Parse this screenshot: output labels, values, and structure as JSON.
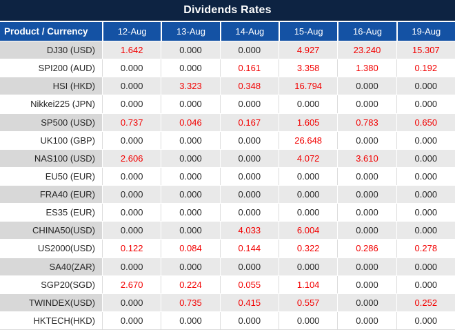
{
  "title": "Dividends Rates",
  "colors": {
    "navy": "#0d2342",
    "hblue": "#1452a4",
    "red": "#f20000",
    "ink": "#262626",
    "gray-col": "#d8d8d8",
    "gray-val": "#e9e9e9"
  },
  "chart_data": {
    "type": "table",
    "title": "Dividends Rates",
    "columns": [
      "Product / Currency",
      "12-Aug",
      "13-Aug",
      "14-Aug",
      "15-Aug",
      "16-Aug",
      "19-Aug"
    ],
    "highlight_color_meaning": "red values indicate non-zero dividend rates",
    "rows": [
      {
        "product": "DJ30 (USD)",
        "values": [
          "1.642",
          "0.000",
          "0.000",
          "4.927",
          "23.240",
          "15.307"
        ],
        "red": [
          true,
          false,
          false,
          true,
          true,
          true
        ]
      },
      {
        "product": "SPI200 (AUD)",
        "values": [
          "0.000",
          "0.000",
          "0.161",
          "3.358",
          "1.380",
          "0.192"
        ],
        "red": [
          false,
          false,
          true,
          true,
          true,
          true
        ]
      },
      {
        "product": "HSI (HKD)",
        "values": [
          "0.000",
          "3.323",
          "0.348",
          "16.794",
          "0.000",
          "0.000"
        ],
        "red": [
          false,
          true,
          true,
          true,
          false,
          false
        ]
      },
      {
        "product": "Nikkei225 (JPN)",
        "values": [
          "0.000",
          "0.000",
          "0.000",
          "0.000",
          "0.000",
          "0.000"
        ],
        "red": [
          false,
          false,
          false,
          false,
          false,
          false
        ]
      },
      {
        "product": "SP500 (USD)",
        "values": [
          "0.737",
          "0.046",
          "0.167",
          "1.605",
          "0.783",
          "0.650"
        ],
        "red": [
          true,
          true,
          true,
          true,
          true,
          true
        ]
      },
      {
        "product": "UK100 (GBP)",
        "values": [
          "0.000",
          "0.000",
          "0.000",
          "26.648",
          "0.000",
          "0.000"
        ],
        "red": [
          false,
          false,
          false,
          true,
          false,
          false
        ]
      },
      {
        "product": "NAS100 (USD)",
        "values": [
          "2.606",
          "0.000",
          "0.000",
          "4.072",
          "3.610",
          "0.000"
        ],
        "red": [
          true,
          false,
          false,
          true,
          true,
          false
        ]
      },
      {
        "product": "EU50 (EUR)",
        "values": [
          "0.000",
          "0.000",
          "0.000",
          "0.000",
          "0.000",
          "0.000"
        ],
        "red": [
          false,
          false,
          false,
          false,
          false,
          false
        ]
      },
      {
        "product": "FRA40 (EUR)",
        "values": [
          "0.000",
          "0.000",
          "0.000",
          "0.000",
          "0.000",
          "0.000"
        ],
        "red": [
          false,
          false,
          false,
          false,
          false,
          false
        ]
      },
      {
        "product": "ES35 (EUR)",
        "values": [
          "0.000",
          "0.000",
          "0.000",
          "0.000",
          "0.000",
          "0.000"
        ],
        "red": [
          false,
          false,
          false,
          false,
          false,
          false
        ]
      },
      {
        "product": "CHINA50(USD)",
        "values": [
          "0.000",
          "0.000",
          "4.033",
          "6.004",
          "0.000",
          "0.000"
        ],
        "red": [
          false,
          false,
          true,
          true,
          false,
          false
        ]
      },
      {
        "product": "US2000(USD)",
        "values": [
          "0.122",
          "0.084",
          "0.144",
          "0.322",
          "0.286",
          "0.278"
        ],
        "red": [
          true,
          true,
          true,
          true,
          true,
          true
        ]
      },
      {
        "product": "SA40(ZAR)",
        "values": [
          "0.000",
          "0.000",
          "0.000",
          "0.000",
          "0.000",
          "0.000"
        ],
        "red": [
          false,
          false,
          false,
          false,
          false,
          false
        ]
      },
      {
        "product": "SGP20(SGD)",
        "values": [
          "2.670",
          "0.224",
          "0.055",
          "1.104",
          "0.000",
          "0.000"
        ],
        "red": [
          true,
          true,
          true,
          true,
          false,
          false
        ]
      },
      {
        "product": "TWINDEX(USD)",
        "values": [
          "0.000",
          "0.735",
          "0.415",
          "0.557",
          "0.000",
          "0.252"
        ],
        "red": [
          false,
          true,
          true,
          true,
          false,
          true
        ]
      },
      {
        "product": "HKTECH(HKD)",
        "values": [
          "0.000",
          "0.000",
          "0.000",
          "0.000",
          "0.000",
          "0.000"
        ],
        "red": [
          false,
          false,
          false,
          false,
          false,
          false
        ]
      }
    ]
  }
}
